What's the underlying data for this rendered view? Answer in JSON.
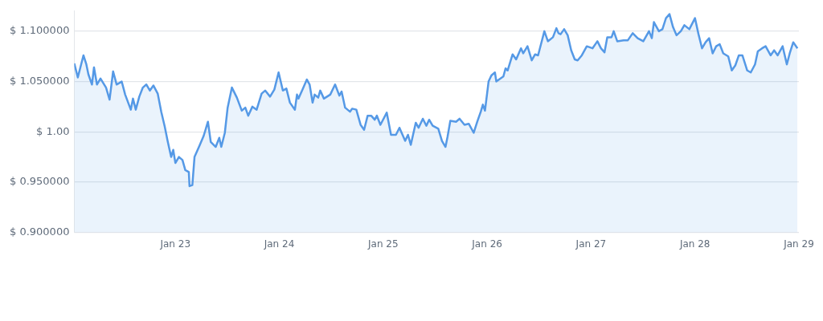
{
  "chart_data": {
    "type": "area",
    "x": [
      "--01-22T00:39",
      "--01-22T01:28",
      "--01-22T02:46",
      "--01-22T03:26",
      "--01-22T03:55",
      "--01-22T04:44",
      "--01-22T05:12",
      "--01-22T05:53",
      "--01-22T06:42",
      "--01-22T07:59",
      "--01-22T08:48",
      "--01-22T09:37",
      "--01-22T10:26",
      "--01-22T11:36",
      "--01-22T12:24",
      "--01-22T13:42",
      "--01-22T14:12",
      "--01-22T14:51",
      "--01-22T15:40",
      "--01-22T16:29",
      "--01-22T17:18",
      "--01-22T18:07",
      "--01-22T18:56",
      "--01-22T19:55",
      "--01-22T20:44",
      "--01-22T21:33",
      "--01-22T22:12",
      "--01-22T23:01",
      "--01-22T23:30",
      "--01-23T00:00",
      "--01-23T00:49",
      "--01-23T01:38",
      "--01-23T02:17",
      "--01-23T03:06",
      "--01-23T03:16",
      "--01-23T03:55",
      "--01-23T04:25",
      "--01-23T05:33",
      "--01-23T06:32",
      "--01-23T07:31",
      "--01-23T08:10",
      "--01-23T09:19",
      "--01-23T10:08",
      "--01-23T10:36",
      "--01-23T11:25",
      "--01-23T12:04",
      "--01-23T13:03",
      "--01-23T14:12",
      "--01-23T15:20",
      "--01-23T16:09",
      "--01-23T16:49",
      "--01-23T17:47",
      "--01-23T18:46",
      "--01-23T19:55",
      "--01-23T20:44",
      "--01-23T21:52",
      "--01-23T22:51",
      "--01-23T23:50",
      "--01-24T00:49",
      "--01-24T01:38",
      "--01-24T02:27",
      "--01-24T03:36",
      "--01-24T04:05",
      "--01-24T04:25",
      "--01-24T05:22",
      "--01-24T06:22",
      "--01-24T07:00",
      "--01-24T07:41",
      "--01-24T08:10",
      "--01-24T08:59",
      "--01-24T09:27",
      "--01-24T10:18",
      "--01-24T11:46",
      "--01-24T12:53",
      "--01-24T13:52",
      "--01-24T14:23",
      "--01-24T15:12",
      "--01-24T16:19",
      "--01-24T16:49",
      "--01-24T17:47",
      "--01-24T18:46",
      "--01-24T19:35",
      "--01-24T20:24",
      "--01-24T21:13",
      "--01-24T22:02",
      "--01-24T22:32",
      "--01-24T23:21",
      "--01-25T00:49",
      "--01-25T01:48",
      "--01-25T02:56",
      "--01-25T03:45",
      "--01-25T05:04",
      "--01-25T05:43",
      "--01-25T06:22",
      "--01-25T07:31",
      "--01-25T08:10",
      "--01-25T09:09",
      "--01-25T09:58",
      "--01-25T10:36",
      "--01-25T11:25",
      "--01-25T12:43",
      "--01-25T13:34",
      "--01-25T14:23",
      "--01-25T14:51",
      "--01-25T15:30",
      "--01-25T16:49",
      "--01-25T17:38",
      "--01-25T18:46",
      "--01-25T19:45",
      "--01-25T20:54",
      "--01-25T21:43",
      "--01-25T22:32",
      "--01-25T23:01",
      "--01-25T23:30",
      "--01-26T00:20",
      "--01-26T00:59",
      "--01-26T01:48",
      "--01-26T02:07",
      "--01-26T03:45",
      "--01-26T04:15",
      "--01-26T04:44",
      "--01-26T05:53",
      "--01-26T06:42",
      "--01-26T07:49",
      "--01-26T08:20",
      "--01-26T09:19",
      "--01-26T10:18",
      "--01-26T11:05",
      "--01-26T11:46",
      "--01-26T12:04",
      "--01-26T13:13",
      "--01-26T14:02",
      "--01-26T15:12",
      "--01-26T16:00",
      "--01-26T16:29",
      "--01-26T16:58",
      "--01-26T17:47",
      "--01-26T18:36",
      "--01-26T19:25",
      "--01-26T20:14",
      "--01-26T20:54",
      "--01-26T21:52",
      "--01-26T23:01",
      "--01-27T00:20",
      "--01-27T01:28",
      "--01-27T02:17",
      "--01-27T03:06",
      "--01-27T03:45",
      "--01-27T04:44",
      "--01-27T05:14",
      "--01-27T06:03",
      "--01-27T07:31",
      "--01-27T08:30",
      "--01-27T09:37",
      "--01-27T10:46",
      "--01-27T12:04",
      "--01-27T13:23",
      "--01-27T14:02",
      "--01-27T14:31",
      "--01-27T15:40",
      "--01-27T16:29",
      "--01-27T17:18",
      "--01-27T18:07",
      "--01-27T18:56",
      "--01-27T19:45",
      "--01-27T20:44",
      "--01-27T21:33",
      "--01-27T22:42",
      "--01-28T00:00",
      "--01-28T00:49",
      "--01-28T01:38",
      "--01-28T02:27",
      "--01-28T03:16",
      "--01-28T04:05",
      "--01-28T04:54",
      "--01-28T05:43",
      "--01-28T06:32",
      "--01-28T07:41",
      "--01-28T08:30",
      "--01-28T09:19",
      "--01-28T10:08",
      "--01-28T10:57",
      "--01-28T12:04",
      "--01-28T12:53",
      "--01-28T13:52",
      "--01-28T14:31",
      "--01-28T15:30",
      "--01-28T16:19",
      "--01-28T17:28",
      "--01-28T18:17",
      "--01-28T19:06",
      "--01-28T20:15",
      "--01-28T21:13",
      "--01-28T21:53",
      "--01-28T22:42",
      "--01-28T23:40"
    ],
    "series": [
      {
        "color": "#5599e6",
        "values": [
          1.068,
          1.054,
          1.076,
          1.067,
          1.057,
          1.047,
          1.064,
          1.047,
          1.053,
          1.044,
          1.032,
          1.06,
          1.047,
          1.05,
          1.037,
          1.022,
          1.033,
          1.022,
          1.035,
          1.044,
          1.047,
          1.041,
          1.046,
          1.038,
          1.02,
          1.005,
          0.991,
          0.975,
          0.982,
          0.969,
          0.975,
          0.972,
          0.962,
          0.96,
          0.946,
          0.947,
          0.975,
          0.986,
          0.996,
          1.01,
          0.99,
          0.985,
          0.994,
          0.985,
          0.999,
          1.024,
          1.044,
          1.034,
          1.021,
          1.024,
          1.016,
          1.025,
          1.022,
          1.038,
          1.041,
          1.035,
          1.042,
          1.059,
          1.041,
          1.043,
          1.029,
          1.022,
          1.037,
          1.033,
          1.042,
          1.052,
          1.047,
          1.029,
          1.037,
          1.034,
          1.041,
          1.033,
          1.037,
          1.047,
          1.036,
          1.04,
          1.024,
          1.02,
          1.023,
          1.022,
          1.007,
          1.002,
          1.016,
          1.016,
          1.012,
          1.016,
          1.007,
          1.019,
          0.997,
          0.997,
          1.004,
          0.991,
          0.997,
          0.987,
          1.009,
          1.004,
          1.013,
          1.006,
          1.012,
          1.006,
          1.003,
          0.991,
          0.985,
          0.995,
          1.011,
          1.01,
          1.013,
          1.007,
          1.008,
          0.999,
          1.01,
          1.02,
          1.027,
          1.021,
          1.05,
          1.056,
          1.059,
          1.05,
          1.055,
          1.063,
          1.061,
          1.077,
          1.072,
          1.083,
          1.078,
          1.085,
          1.071,
          1.077,
          1.076,
          1.081,
          1.1,
          1.09,
          1.094,
          1.103,
          1.098,
          1.097,
          1.102,
          1.096,
          1.081,
          1.072,
          1.071,
          1.076,
          1.085,
          1.083,
          1.09,
          1.083,
          1.079,
          1.094,
          1.094,
          1.1,
          1.09,
          1.091,
          1.091,
          1.098,
          1.093,
          1.09,
          1.1,
          1.093,
          1.109,
          1.1,
          1.102,
          1.113,
          1.117,
          1.104,
          1.096,
          1.1,
          1.106,
          1.102,
          1.113,
          1.097,
          1.083,
          1.089,
          1.093,
          1.078,
          1.085,
          1.087,
          1.078,
          1.075,
          1.061,
          1.066,
          1.076,
          1.076,
          1.061,
          1.059,
          1.067,
          1.08,
          1.083,
          1.085,
          1.076,
          1.081,
          1.076,
          1.085,
          1.067,
          1.078,
          1.089,
          1.083
        ]
      }
    ],
    "xlim": [
      "--01-22T00:39",
      "--01-29T00:00"
    ],
    "xticks": [
      {
        "value": "--01-23",
        "label": "Jan 23"
      },
      {
        "value": "--01-24",
        "label": "Jan 24"
      },
      {
        "value": "--01-25",
        "label": "Jan 25"
      },
      {
        "value": "--01-26",
        "label": "Jan 26"
      },
      {
        "value": "--01-27",
        "label": "Jan 27"
      },
      {
        "value": "--01-28",
        "label": "Jan 28"
      },
      {
        "value": "--01-29",
        "label": "Jan 29"
      }
    ],
    "ylim": [
      0.9,
      1.12
    ],
    "yticks": [
      {
        "value": 0.9,
        "label": "$ 0.900000"
      },
      {
        "value": 0.95,
        "label": "$ 0.950000"
      },
      {
        "value": 1.0,
        "label": "$ 1.00"
      },
      {
        "value": 1.05,
        "label": "$ 1.050000"
      },
      {
        "value": 1.1,
        "label": "$ 1.100000"
      }
    ],
    "grid": "y"
  }
}
